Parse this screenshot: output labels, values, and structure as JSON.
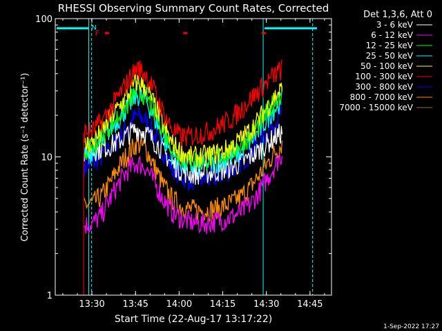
{
  "chart_data": {
    "type": "line",
    "title": "RHESSI Observing Summary Count Rates, Corrected",
    "xlabel": "Start Time (22-Aug-17 13:17:22)",
    "ylabel": "Corrected Count Rate (s⁻¹ detector⁻¹)",
    "x_axis": {
      "unit": "minutes after 13:17:22",
      "range": [
        0,
        95
      ],
      "tick_labels": [
        "13:30",
        "13:45",
        "14:00",
        "14:15",
        "14:30",
        "14:45"
      ],
      "tick_values": [
        12.6,
        27.6,
        42.6,
        57.6,
        72.6,
        87.6
      ]
    },
    "y_axis": {
      "scale": "log",
      "range": [
        1,
        100
      ],
      "tick_labels": [
        "1",
        "10",
        "100"
      ],
      "tick_values": [
        1,
        10,
        100
      ]
    },
    "legend": {
      "header": "Det 1,3,6, Att 0",
      "placement": "right"
    },
    "series": [
      {
        "name": "3 - 6 keV",
        "color": "#ffffff",
        "x": [
          10,
          13,
          16,
          19,
          22,
          25,
          28,
          31,
          34,
          37,
          40,
          43,
          46,
          49,
          52,
          55,
          58,
          61,
          64,
          67,
          70,
          73,
          76,
          78
        ],
        "y": [
          11,
          11,
          11.5,
          12,
          13,
          14.5,
          16,
          15,
          13,
          11,
          9,
          8,
          7.5,
          7.5,
          7.6,
          7.8,
          8,
          8.5,
          9,
          10,
          11,
          12.5,
          14,
          15
        ]
      },
      {
        "name": "6 - 12 keV",
        "color": "#ff00ff",
        "x": [
          10,
          13,
          16,
          19,
          22,
          25,
          28,
          31,
          34,
          37,
          40,
          43,
          46,
          49,
          52,
          55,
          58,
          61,
          64,
          67,
          70,
          73,
          76,
          78
        ],
        "y": [
          3.2,
          3.3,
          3.8,
          5,
          6.5,
          8,
          9,
          8.5,
          6.5,
          5,
          4,
          3.6,
          3.4,
          3.3,
          3.3,
          3.4,
          3.5,
          3.7,
          4,
          4.5,
          5.5,
          7,
          9,
          10.5
        ]
      },
      {
        "name": "12 - 25 keV",
        "color": "#00ff00",
        "x": [
          10,
          13,
          16,
          19,
          22,
          25,
          28,
          31,
          34,
          37,
          40,
          43,
          46,
          49,
          52,
          55,
          58,
          61,
          64,
          67,
          70,
          73,
          76,
          78
        ],
        "y": [
          11,
          12,
          14,
          17,
          20,
          24,
          30,
          28,
          21,
          16,
          12,
          10,
          9.5,
          9.5,
          9.7,
          10,
          10.5,
          11,
          12.5,
          14,
          17,
          21,
          26,
          29
        ]
      },
      {
        "name": "25 - 50 keV",
        "color": "#00ffff",
        "x": [
          10,
          13,
          16,
          19,
          22,
          25,
          28,
          31,
          34,
          37,
          40,
          43,
          46,
          49,
          52,
          55,
          58,
          61,
          64,
          67,
          70,
          73,
          76,
          78
        ],
        "y": [
          10,
          11,
          13,
          16,
          19,
          23,
          28,
          26,
          19,
          14,
          10.5,
          9,
          8.5,
          8.5,
          8.7,
          9,
          9.5,
          10,
          11,
          13,
          15,
          19,
          23,
          26
        ]
      },
      {
        "name": "50 - 100 keV",
        "color": "#ffff00",
        "x": [
          10,
          13,
          16,
          19,
          22,
          25,
          28,
          31,
          34,
          37,
          40,
          43,
          46,
          49,
          52,
          55,
          58,
          61,
          64,
          67,
          70,
          73,
          76,
          78
        ],
        "y": [
          12,
          13,
          15,
          19,
          23,
          28,
          35,
          32,
          24,
          17,
          12.5,
          11,
          10,
          10,
          10.2,
          10.5,
          11,
          12,
          13.5,
          15.5,
          18.5,
          23,
          28,
          31
        ]
      },
      {
        "name": "100 - 300 keV",
        "color": "#ff0000",
        "x": [
          10,
          13,
          16,
          19,
          22,
          25,
          28,
          31,
          34,
          37,
          40,
          43,
          46,
          49,
          52,
          55,
          58,
          61,
          64,
          67,
          70,
          73,
          76,
          78
        ],
        "y": [
          15,
          15.5,
          18,
          22,
          28,
          35,
          44,
          40,
          30,
          21,
          16,
          14,
          14,
          14.5,
          15,
          16,
          17.5,
          19,
          22,
          26,
          30,
          35,
          40,
          43
        ]
      },
      {
        "name": "300 - 800 keV",
        "color": "#0000ff",
        "x": [
          10,
          13,
          16,
          19,
          22,
          25,
          28,
          31,
          34,
          37,
          40,
          43,
          46,
          49,
          52,
          55,
          58,
          61,
          64,
          67,
          70,
          73,
          76,
          78
        ],
        "y": [
          8.5,
          9,
          10,
          11.5,
          13.5,
          16.5,
          20,
          18.5,
          14.5,
          11,
          8.5,
          7.2,
          6.8,
          6.8,
          6.9,
          7.1,
          7.6,
          8.2,
          9.2,
          10.5,
          12.5,
          15,
          18.5,
          21
        ]
      },
      {
        "name": "800 - 7000 keV",
        "color": "#ff8c00",
        "x": [
          10,
          13,
          16,
          19,
          22,
          25,
          28,
          31,
          34,
          37,
          40,
          43,
          46,
          49,
          52,
          55,
          58,
          61,
          64,
          67,
          70,
          73,
          76,
          78
        ],
        "y": [
          4.5,
          4.6,
          5.2,
          6.5,
          8.5,
          10.5,
          12.5,
          11.5,
          8.5,
          6.3,
          5,
          4.4,
          4.2,
          4.1,
          4.1,
          4.2,
          4.4,
          4.7,
          5.2,
          6,
          7.3,
          9,
          11,
          12.5
        ]
      },
      {
        "name": "7000 - 15000 keV",
        "color": "#a07000",
        "x": [],
        "y": []
      }
    ],
    "annotations": {
      "night_start_label": "N",
      "flare_label": "F",
      "saa_intervals": [
        [
          0,
          11.5
        ],
        [
          71.5,
          90
        ]
      ],
      "night_lines": [
        11.5,
        71.5
      ],
      "dashed_lines": [
        12.5,
        88.5
      ],
      "flare_marks": [
        [
          17,
          18.5
        ],
        [
          44,
          45.5
        ],
        [
          71,
          72.5
        ]
      ]
    },
    "timestamp": "1-Sep-2022 17:27"
  }
}
